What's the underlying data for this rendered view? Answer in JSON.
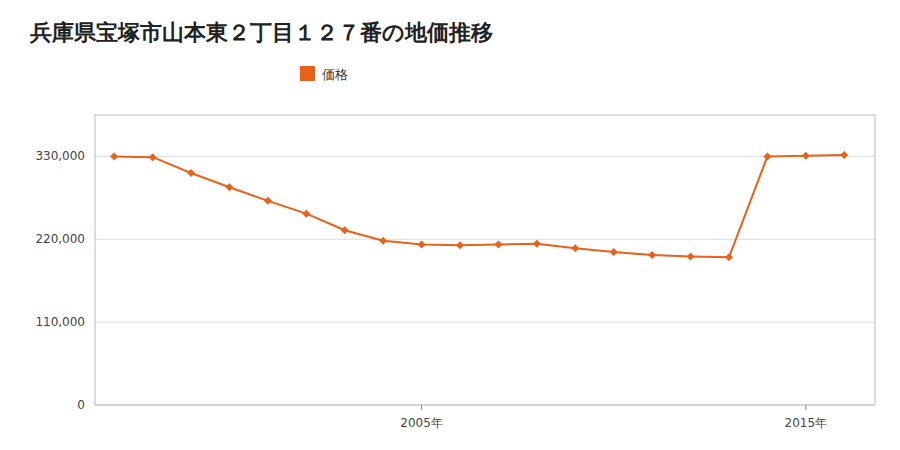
{
  "chart_data": {
    "type": "line",
    "title": "兵庫県宝塚市山本東２丁目１２７番の地価推移",
    "x": [
      1997,
      1998,
      1999,
      2000,
      2001,
      2002,
      2003,
      2004,
      2005,
      2006,
      2007,
      2008,
      2009,
      2010,
      2011,
      2012,
      2013,
      2014,
      2015,
      2016
    ],
    "series": [
      {
        "name": "価格",
        "color": "#e8621a",
        "marker": "diamond",
        "line_style": "solid",
        "values": [
          330000,
          329000,
          308000,
          289000,
          271000,
          254000,
          232000,
          218000,
          213000,
          212000,
          213000,
          214000,
          208000,
          203000,
          199000,
          197000,
          196000,
          330000,
          331000,
          332000
        ]
      }
    ],
    "xlim": [
      1996.5,
      2016.8
    ],
    "xticks": [
      {
        "value": 2005,
        "label": "2005年"
      },
      {
        "value": 2015,
        "label": "2015年"
      }
    ],
    "ylim": [
      0,
      385000
    ],
    "yticks": [
      0,
      {
        "value": 110000,
        "label": "110,000"
      },
      {
        "value": 220000,
        "label": "220,000"
      },
      {
        "value": 330000,
        "label": "330,000"
      }
    ],
    "grid": true,
    "legend": "top"
  }
}
